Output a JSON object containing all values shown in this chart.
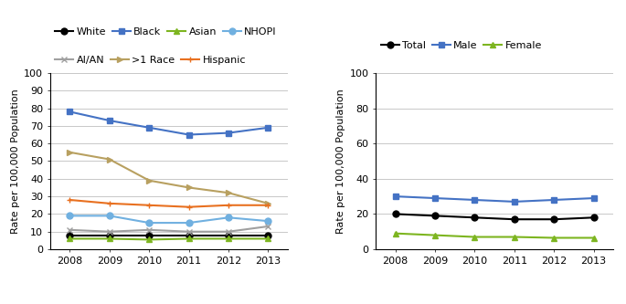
{
  "years": [
    2008,
    2009,
    2010,
    2011,
    2012,
    2013
  ],
  "left_chart": {
    "ylabel": "Rate per 100,000 Population",
    "ylim": [
      0,
      100
    ],
    "yticks": [
      0,
      10,
      20,
      30,
      40,
      50,
      60,
      70,
      80,
      90,
      100
    ],
    "series": [
      {
        "label": "White",
        "color": "#000000",
        "marker": "o",
        "values": [
          8,
          8,
          8,
          8,
          8,
          8
        ]
      },
      {
        "label": "Black",
        "color": "#4472C4",
        "marker": "s",
        "values": [
          78,
          73,
          69,
          65,
          66,
          69
        ]
      },
      {
        "label": "Asian",
        "color": "#7DB520",
        "marker": "^",
        "values": [
          6,
          6,
          5.5,
          6,
          6,
          6
        ]
      },
      {
        "label": "NHOPI",
        "color": "#70B0E0",
        "marker": "o",
        "values": [
          19,
          19,
          15,
          15,
          18,
          16
        ]
      },
      {
        "label": "AI/AN",
        "color": "#A0A0A0",
        "marker": "x",
        "values": [
          11,
          10,
          11,
          10,
          10,
          13
        ]
      },
      {
        "label": ">1 Race",
        "color": "#B8A060",
        "marker": ">",
        "values": [
          55,
          51,
          39,
          35,
          32,
          26
        ]
      },
      {
        "label": "Hispanic",
        "color": "#E87020",
        "marker": "+",
        "values": [
          28,
          26,
          25,
          24,
          25,
          25
        ]
      }
    ]
  },
  "right_chart": {
    "ylabel": "Rate per 100,000 Population",
    "ylim": [
      0,
      100
    ],
    "yticks": [
      0,
      20,
      40,
      60,
      80,
      100
    ],
    "series": [
      {
        "label": "Total",
        "color": "#000000",
        "marker": "o",
        "values": [
          20,
          19,
          18,
          17,
          17,
          18
        ]
      },
      {
        "label": "Male",
        "color": "#4472C4",
        "marker": "s",
        "values": [
          30,
          29,
          28,
          27,
          28,
          29
        ]
      },
      {
        "label": "Female",
        "color": "#7DB520",
        "marker": "^",
        "values": [
          9,
          8,
          7,
          7,
          6.5,
          6.5
        ]
      }
    ]
  },
  "grid_color": "#C8C8C8",
  "line_width": 1.5,
  "marker_size": 5,
  "font_size_legend": 8,
  "font_size_tick": 8,
  "font_size_ylabel": 8
}
